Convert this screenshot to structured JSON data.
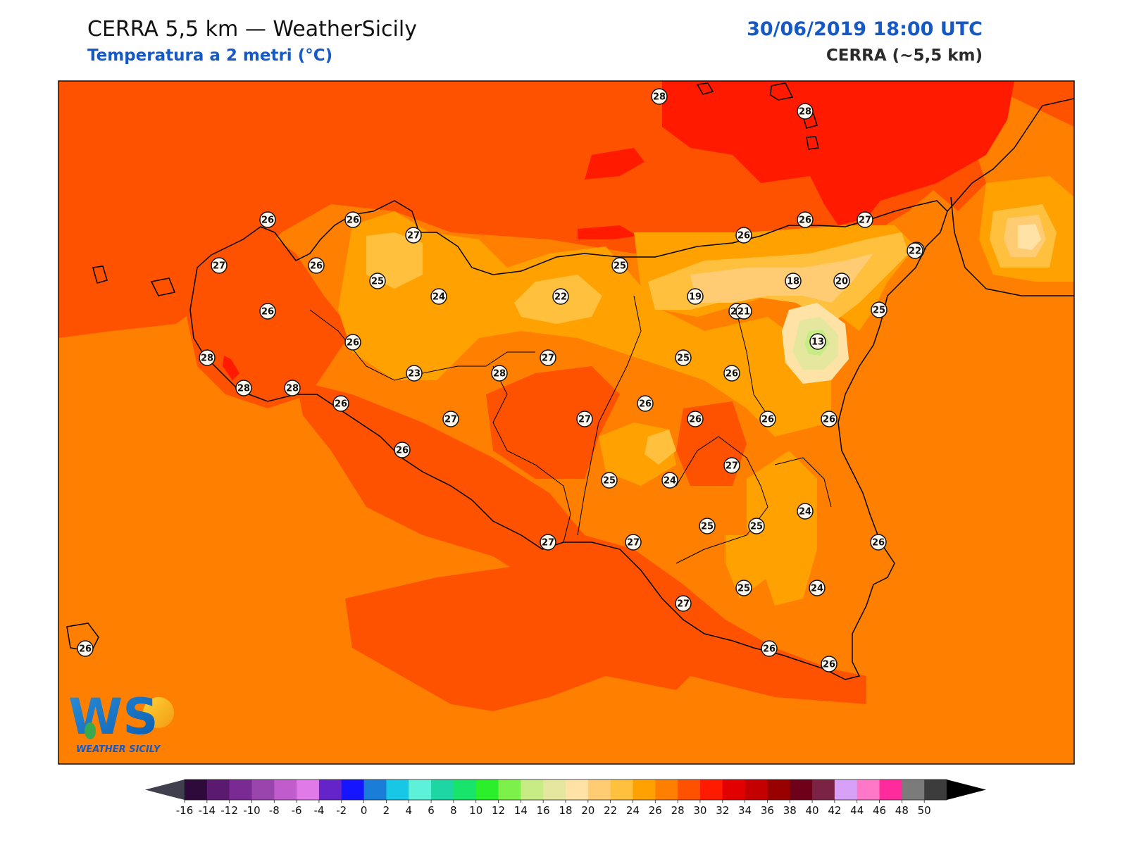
{
  "header": {
    "title": "CERRA 5,5 km — WeatherSicily",
    "subtitle": "Temperatura a 2 metri (°C)",
    "datetime": "30/06/2019 18:00 UTC",
    "model": "CERRA (~5,5 km)"
  },
  "logo": {
    "letters": "WS",
    "brand": "WEATHER SICILY"
  },
  "colorbar": {
    "ticks": [
      "-16",
      "-14",
      "-12",
      "-10",
      "-8",
      "-6",
      "-4",
      "-2",
      "0",
      "2",
      "4",
      "6",
      "8",
      "10",
      "12",
      "14",
      "16",
      "18",
      "20",
      "22",
      "24",
      "26",
      "28",
      "30",
      "32",
      "34",
      "36",
      "38",
      "40",
      "42",
      "44",
      "46",
      "48",
      "50"
    ],
    "colors": [
      "#2d0a3a",
      "#5a1a70",
      "#7a2b93",
      "#9a44ad",
      "#c15ccd",
      "#e07ae8",
      "#6524c9",
      "#1515ff",
      "#1a7dd8",
      "#18c6e6",
      "#5df1d9",
      "#1dd6a3",
      "#18e46b",
      "#2bef2b",
      "#7df04a",
      "#c7ec86",
      "#e5e79f",
      "#ffe3a6",
      "#ffcb73",
      "#ffc03d",
      "#ffa100",
      "#ff8000",
      "#ff5200",
      "#ff1a00",
      "#e30000",
      "#c40000",
      "#990000",
      "#6e0019",
      "#7b2345",
      "#d6a1f6",
      "#ff78c8",
      "#ff2a9b",
      "#7b7b7b",
      "#3c3c3c"
    ],
    "under_color": "#3f3f4d",
    "over_color": "#000000"
  },
  "stations": [
    {
      "label": "28",
      "value": 28
    },
    {
      "label": "28",
      "value": 28
    },
    {
      "label": "26",
      "value": 26
    },
    {
      "label": "26",
      "value": 26
    },
    {
      "label": "27",
      "value": 27
    },
    {
      "label": "26",
      "value": 26
    },
    {
      "label": "27",
      "value": 27
    },
    {
      "label": "27",
      "value": 27
    },
    {
      "label": "26",
      "value": 26
    },
    {
      "label": "26",
      "value": 26
    },
    {
      "label": "25",
      "value": 25
    },
    {
      "label": "24",
      "value": 24
    },
    {
      "label": "22",
      "value": 22
    },
    {
      "label": "25",
      "value": 25
    },
    {
      "label": "26",
      "value": 26
    },
    {
      "label": "26",
      "value": 26
    },
    {
      "label": "22",
      "value": 22
    },
    {
      "label": "18",
      "value": 18
    },
    {
      "label": "20",
      "value": 20
    },
    {
      "label": "19",
      "value": 19
    },
    {
      "label": "21",
      "value": 21
    },
    {
      "label": "25",
      "value": 25
    },
    {
      "label": "13",
      "value": 13
    },
    {
      "label": "26",
      "value": 26
    },
    {
      "label": "28",
      "value": 28
    },
    {
      "label": "28",
      "value": 28
    },
    {
      "label": "28",
      "value": 28
    },
    {
      "label": "23",
      "value": 23
    },
    {
      "label": "28",
      "value": 28
    },
    {
      "label": "27",
      "value": 27
    },
    {
      "label": "26",
      "value": 26
    },
    {
      "label": "25",
      "value": 25
    },
    {
      "label": "26",
      "value": 26
    },
    {
      "label": "26",
      "value": 26
    },
    {
      "label": "27",
      "value": 27
    },
    {
      "label": "27",
      "value": 27
    },
    {
      "label": "26",
      "value": 26
    },
    {
      "label": "26",
      "value": 26
    },
    {
      "label": "26",
      "value": 26
    },
    {
      "label": "26",
      "value": 26
    },
    {
      "label": "26",
      "value": 26
    },
    {
      "label": "25",
      "value": 25
    },
    {
      "label": "24",
      "value": 24
    },
    {
      "label": "27",
      "value": 27
    },
    {
      "label": "24",
      "value": 24
    },
    {
      "label": "25",
      "value": 25
    },
    {
      "label": "25",
      "value": 25
    },
    {
      "label": "26",
      "value": 26
    },
    {
      "label": "27",
      "value": 27
    },
    {
      "label": "27",
      "value": 27
    },
    {
      "label": "25",
      "value": 25
    },
    {
      "label": "24",
      "value": 24
    },
    {
      "label": "27",
      "value": 27
    },
    {
      "label": "26",
      "value": 26
    },
    {
      "label": "26",
      "value": 26
    },
    {
      "label": "26",
      "value": 26
    }
  ]
}
